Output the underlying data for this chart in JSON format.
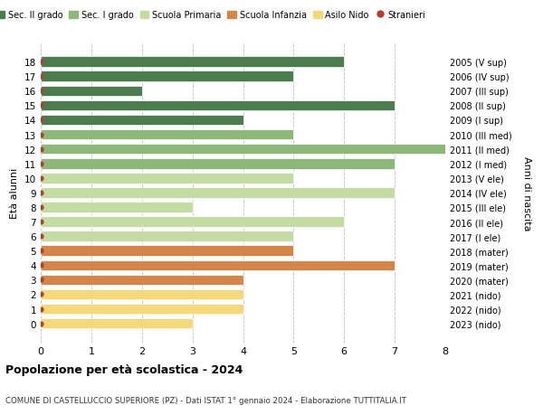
{
  "ages": [
    18,
    17,
    16,
    15,
    14,
    13,
    12,
    11,
    10,
    9,
    8,
    7,
    6,
    5,
    4,
    3,
    2,
    1,
    0
  ],
  "right_labels": [
    "2005 (V sup)",
    "2006 (IV sup)",
    "2007 (III sup)",
    "2008 (II sup)",
    "2009 (I sup)",
    "2010 (III med)",
    "2011 (II med)",
    "2012 (I med)",
    "2013 (V ele)",
    "2014 (IV ele)",
    "2015 (III ele)",
    "2016 (II ele)",
    "2017 (I ele)",
    "2018 (mater)",
    "2019 (mater)",
    "2020 (mater)",
    "2021 (nido)",
    "2022 (nido)",
    "2023 (nido)"
  ],
  "values": [
    6,
    5,
    2,
    7,
    4,
    5,
    8,
    7,
    5,
    7,
    3,
    6,
    5,
    5,
    7,
    4,
    4,
    4,
    3
  ],
  "bar_colors": [
    "#4a7c4e",
    "#4a7c4e",
    "#4a7c4e",
    "#4a7c4e",
    "#4a7c4e",
    "#8db87a",
    "#8db87a",
    "#8db87a",
    "#c5dba4",
    "#c5dba4",
    "#c5dba4",
    "#c5dba4",
    "#c5dba4",
    "#d4854a",
    "#d4854a",
    "#d4854a",
    "#f5d87a",
    "#f5d87a",
    "#f5d87a"
  ],
  "dot_color": "#c0392b",
  "legend_items": [
    {
      "label": "Sec. II grado",
      "color": "#4a7c4e",
      "type": "patch"
    },
    {
      "label": "Sec. I grado",
      "color": "#8db87a",
      "type": "patch"
    },
    {
      "label": "Scuola Primaria",
      "color": "#c5dba4",
      "type": "patch"
    },
    {
      "label": "Scuola Infanzia",
      "color": "#d4854a",
      "type": "patch"
    },
    {
      "label": "Asilo Nido",
      "color": "#f5d87a",
      "type": "patch"
    },
    {
      "label": "Stranieri",
      "color": "#c0392b",
      "type": "dot"
    }
  ],
  "ylabel_left": "Età alunni",
  "ylabel_right": "Anni di nascita",
  "title": "Popolazione per età scolastica - 2024",
  "subtitle": "COMUNE DI CASTELLUCCIO SUPERIORE (PZ) - Dati ISTAT 1° gennaio 2024 - Elaborazione TUTTITALIA.IT",
  "xlim": [
    0,
    8
  ],
  "xticks": [
    0,
    1,
    2,
    3,
    4,
    5,
    6,
    7,
    8
  ],
  "bar_height": 0.72,
  "background_color": "#ffffff",
  "grid_color": "#bbbbbb"
}
